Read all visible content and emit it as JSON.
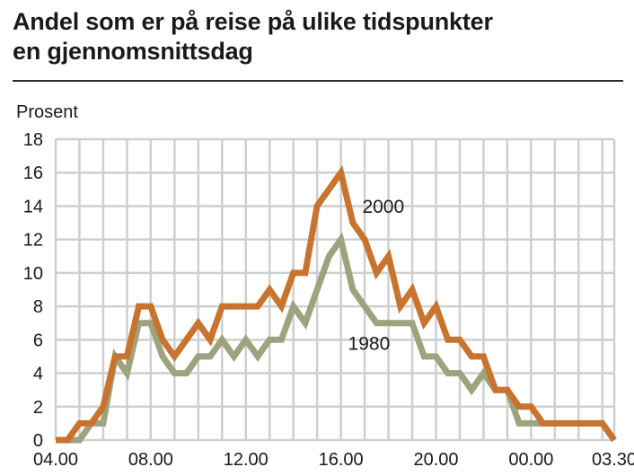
{
  "title_line1": "Andel som er på reise på ulike tidspunkter",
  "title_line2": "en gjennomsnittsdag",
  "chart_data": {
    "type": "line",
    "title": "Andel som er på reise på ulike tidspunkter en gjennomsnittsdag",
    "ylabel": "Prosent",
    "xlabel": "",
    "ylim": [
      0,
      18
    ],
    "yticks": [
      0,
      2,
      4,
      6,
      8,
      10,
      12,
      14,
      16,
      18
    ],
    "xtick_labels": [
      "04.00",
      "08.00",
      "12.00",
      "16.00",
      "20.00",
      "00.00",
      "03.30"
    ],
    "grid": true,
    "x_hours": [
      4,
      4.5,
      5,
      5.5,
      6,
      6.5,
      7,
      7.5,
      8,
      8.5,
      9,
      9.5,
      10,
      10.5,
      11,
      11.5,
      12,
      12.5,
      13,
      13.5,
      14,
      14.5,
      15,
      15.5,
      16,
      16.5,
      17,
      17.5,
      18,
      18.5,
      19,
      19.5,
      20,
      20.5,
      21,
      21.5,
      22,
      22.5,
      23,
      23.5,
      24,
      24.5,
      25,
      25.5,
      26,
      26.5,
      27,
      27.5
    ],
    "series": [
      {
        "name": "2000",
        "color": "#c8742e",
        "values": [
          0,
          0,
          1,
          1,
          2,
          5,
          5,
          8,
          8,
          6,
          5,
          6,
          7,
          6,
          8,
          8,
          8,
          8,
          9,
          8,
          10,
          10,
          14,
          15,
          16,
          13,
          12,
          10,
          11,
          8,
          9,
          7,
          8,
          6,
          6,
          5,
          5,
          3,
          3,
          2,
          2,
          1,
          1,
          1,
          1,
          1,
          1,
          0
        ]
      },
      {
        "name": "1980",
        "color": "#9ea27e",
        "values": [
          0,
          0,
          0,
          1,
          1,
          5,
          4,
          7,
          7,
          5,
          4,
          4,
          5,
          5,
          6,
          5,
          6,
          5,
          6,
          6,
          8,
          7,
          9,
          11,
          12,
          9,
          8,
          7,
          7,
          7,
          7,
          5,
          5,
          4,
          4,
          3,
          4,
          3,
          3,
          1,
          1,
          1,
          1,
          1,
          1,
          1,
          1,
          0
        ]
      }
    ],
    "annotations": [
      "2000",
      "1980"
    ],
    "colors": {
      "series_2000": "#c8742e",
      "series_1980": "#9ea27e",
      "grid": "#cfcfcf",
      "background": "#ffffff"
    }
  }
}
